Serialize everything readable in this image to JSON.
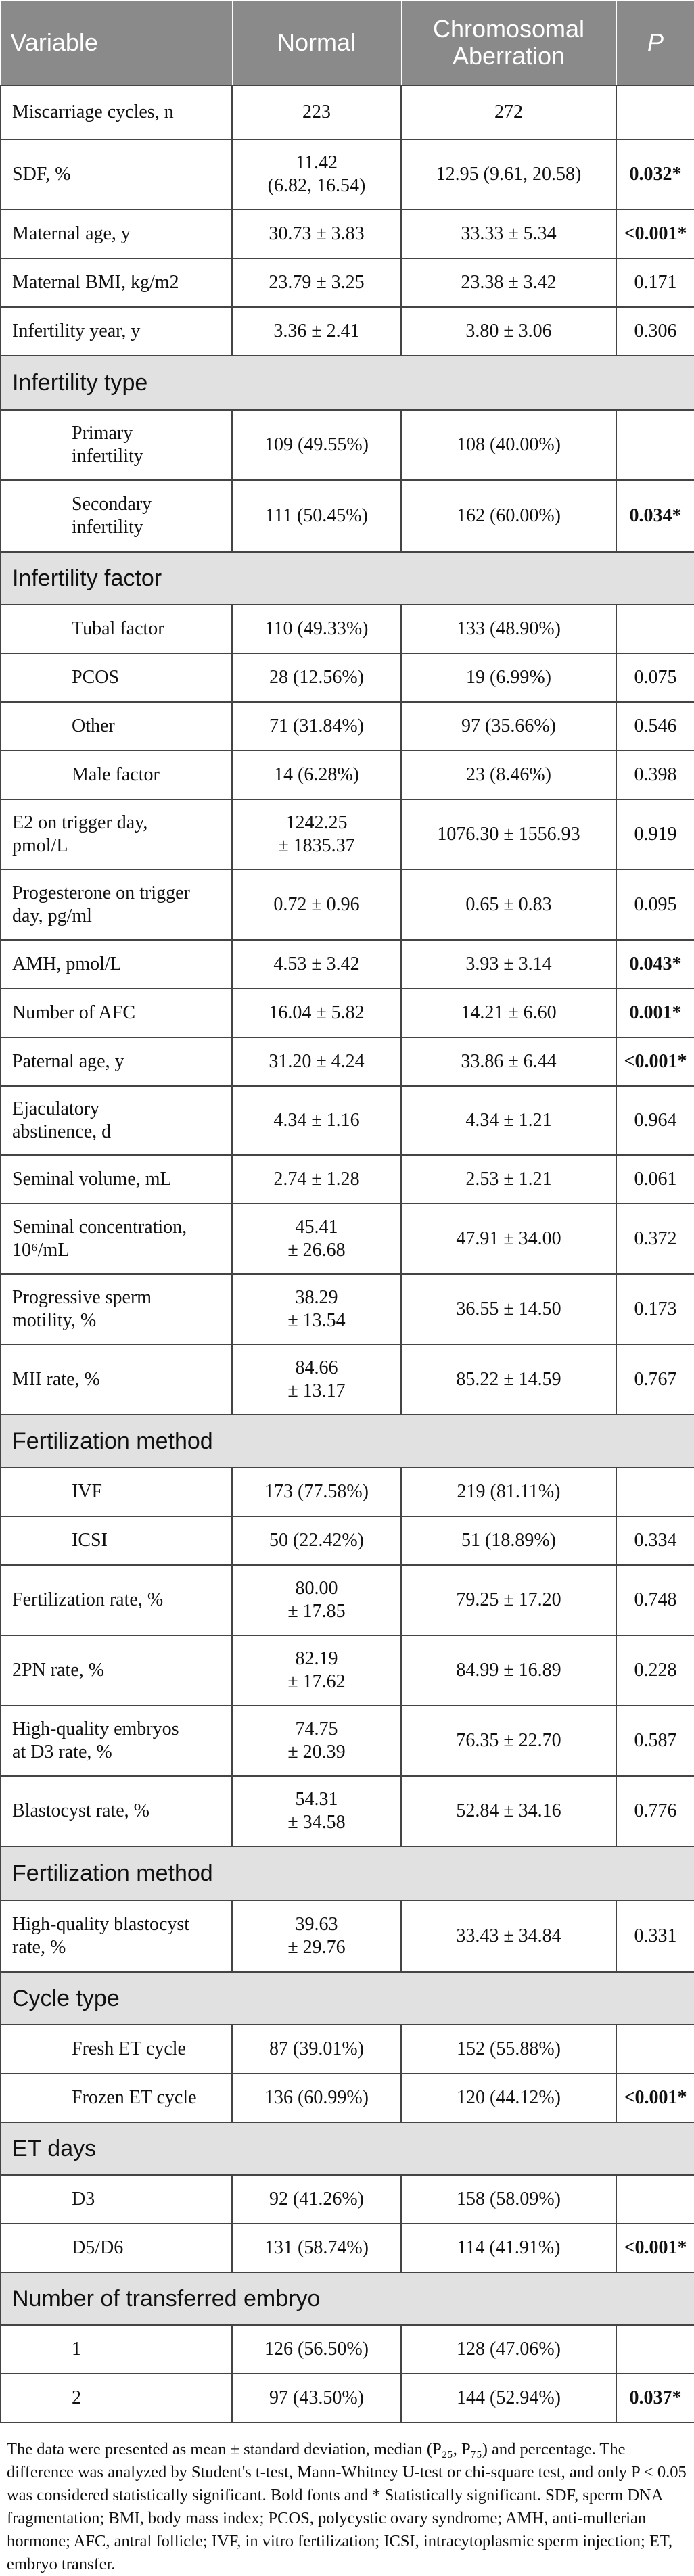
{
  "header": {
    "variable": "Variable",
    "normal": "Normal",
    "aberration_line1": "Chromosomal",
    "aberration_line2": "Aberration",
    "p": "P"
  },
  "rows": [
    {
      "kind": "data",
      "h": 80,
      "label": [
        "Miscarriage cycles, n"
      ],
      "normal": [
        "223"
      ],
      "aberration": [
        "272"
      ],
      "p": "",
      "bold": false
    },
    {
      "kind": "data",
      "h": 104,
      "label": [
        "SDF, %"
      ],
      "normal": [
        "11.42",
        "(6.82, 16.54)"
      ],
      "aberration": [
        "12.95 (9.61, 20.58)"
      ],
      "p": "0.032*",
      "bold": true
    },
    {
      "kind": "data",
      "h": 72,
      "label": [
        "Maternal age, y"
      ],
      "normal": [
        "30.73 ± 3.83"
      ],
      "aberration": [
        "33.33 ± 5.34"
      ],
      "p": "<0.001*",
      "bold": true
    },
    {
      "kind": "data",
      "h": 72,
      "label": [
        "Maternal BMI, kg/m2"
      ],
      "normal": [
        "23.79 ± 3.25"
      ],
      "aberration": [
        "23.38 ± 3.42"
      ],
      "p": "0.171",
      "bold": false
    },
    {
      "kind": "data",
      "h": 72,
      "label": [
        "Infertility year, y"
      ],
      "normal": [
        "3.36 ± 2.41"
      ],
      "aberration": [
        "3.80 ± 3.06"
      ],
      "p": "0.306",
      "bold": false
    },
    {
      "kind": "section",
      "h": 80,
      "label": "Infertility type"
    },
    {
      "kind": "sub",
      "h": 104,
      "label": [
        "Primary",
        "infertility"
      ],
      "normal": [
        "109 (49.55%)"
      ],
      "aberration": [
        "108 (40.00%)"
      ],
      "p": "",
      "bold": false
    },
    {
      "kind": "sub",
      "h": 106,
      "label": [
        "Secondary",
        "infertility"
      ],
      "normal": [
        "111 (50.45%)"
      ],
      "aberration": [
        "162 (60.00%)"
      ],
      "p": "0.034*",
      "bold": true
    },
    {
      "kind": "section",
      "h": 78,
      "label": "Infertility factor"
    },
    {
      "kind": "sub",
      "h": 72,
      "label": [
        "Tubal factor"
      ],
      "normal": [
        "110 (49.33%)"
      ],
      "aberration": [
        "133 (48.90%)"
      ],
      "p": "",
      "bold": false
    },
    {
      "kind": "sub",
      "h": 72,
      "label": [
        "PCOS"
      ],
      "normal": [
        "28 (12.56%)"
      ],
      "aberration": [
        "19 (6.99%)"
      ],
      "p": "0.075",
      "bold": false
    },
    {
      "kind": "sub",
      "h": 72,
      "label": [
        "Other"
      ],
      "normal": [
        "71 (31.84%)"
      ],
      "aberration": [
        "97 (35.66%)"
      ],
      "p": "0.546",
      "bold": false
    },
    {
      "kind": "sub",
      "h": 72,
      "label": [
        "Male factor"
      ],
      "normal": [
        "14 (6.28%)"
      ],
      "aberration": [
        "23 (8.46%)"
      ],
      "p": "0.398",
      "bold": false
    },
    {
      "kind": "data",
      "h": 104,
      "label": [
        "E2 on trigger day,",
        "pmol/L"
      ],
      "normal": [
        "1242.25",
        "± 1835.37"
      ],
      "aberration": [
        "1076.30 ± 1556.93"
      ],
      "p": "0.919",
      "bold": false
    },
    {
      "kind": "data",
      "h": 104,
      "label": [
        "Progesterone on trigger",
        "day, pg/ml"
      ],
      "normal": [
        "0.72 ± 0.96"
      ],
      "aberration": [
        "0.65 ± 0.83"
      ],
      "p": "0.095",
      "bold": false
    },
    {
      "kind": "data",
      "h": 72,
      "label": [
        "AMH, pmol/L"
      ],
      "normal": [
        "4.53 ± 3.42"
      ],
      "aberration": [
        "3.93 ± 3.14"
      ],
      "p": "0.043*",
      "bold": true
    },
    {
      "kind": "data",
      "h": 72,
      "label": [
        "Number of AFC"
      ],
      "normal": [
        "16.04 ± 5.82"
      ],
      "aberration": [
        "14.21 ± 6.60"
      ],
      "p": "0.001*",
      "bold": true
    },
    {
      "kind": "data",
      "h": 72,
      "label": [
        "Paternal age, y"
      ],
      "normal": [
        "31.20 ± 4.24"
      ],
      "aberration": [
        "33.86 ± 6.44"
      ],
      "p": "<0.001*",
      "bold": true
    },
    {
      "kind": "data",
      "h": 102,
      "label": [
        "Ejaculatory",
        "abstinence, d"
      ],
      "normal": [
        "4.34 ± 1.16"
      ],
      "aberration": [
        "4.34 ± 1.21"
      ],
      "p": "0.964",
      "bold": false
    },
    {
      "kind": "data",
      "h": 72,
      "label": [
        "Seminal volume, mL"
      ],
      "normal": [
        "2.74 ± 1.28"
      ],
      "aberration": [
        "2.53 ± 1.21"
      ],
      "p": "0.061",
      "bold": false
    },
    {
      "kind": "data",
      "h": 104,
      "label": [
        "Seminal concentration,",
        "10⁶/mL"
      ],
      "normal": [
        "45.41",
        "± 26.68"
      ],
      "aberration": [
        "47.91 ± 34.00"
      ],
      "p": "0.372",
      "bold": false
    },
    {
      "kind": "data",
      "h": 104,
      "label": [
        "Progressive sperm",
        "motility, %"
      ],
      "normal": [
        "38.29",
        "± 13.54"
      ],
      "aberration": [
        "36.55 ± 14.50"
      ],
      "p": "0.173",
      "bold": false
    },
    {
      "kind": "data",
      "h": 104,
      "label": [
        "MII rate, %"
      ],
      "normal": [
        "84.66",
        "± 13.17"
      ],
      "aberration": [
        "85.22 ± 14.59"
      ],
      "p": "0.767",
      "bold": false
    },
    {
      "kind": "section",
      "h": 78,
      "label": "Fertilization method"
    },
    {
      "kind": "sub",
      "h": 72,
      "label": [
        "IVF"
      ],
      "normal": [
        "173 (77.58%)"
      ],
      "aberration": [
        "219 (81.11%)"
      ],
      "p": "",
      "bold": false
    },
    {
      "kind": "sub",
      "h": 72,
      "label": [
        "ICSI"
      ],
      "normal": [
        "50 (22.42%)"
      ],
      "aberration": [
        "51 (18.89%)"
      ],
      "p": "0.334",
      "bold": false
    },
    {
      "kind": "data",
      "h": 104,
      "label": [
        "Fertilization rate, %"
      ],
      "normal": [
        "80.00",
        "± 17.85"
      ],
      "aberration": [
        "79.25 ± 17.20"
      ],
      "p": "0.748",
      "bold": false
    },
    {
      "kind": "data",
      "h": 104,
      "label": [
        "2PN rate, %"
      ],
      "normal": [
        "82.19",
        "± 17.62"
      ],
      "aberration": [
        "84.99 ± 16.89"
      ],
      "p": "0.228",
      "bold": false
    },
    {
      "kind": "data",
      "h": 104,
      "label": [
        "High-quality embryos",
        "at D3 rate, %"
      ],
      "normal": [
        "74.75",
        "± 20.39"
      ],
      "aberration": [
        "76.35 ± 22.70"
      ],
      "p": "0.587",
      "bold": false
    },
    {
      "kind": "data",
      "h": 104,
      "label": [
        "Blastocyst rate, %"
      ],
      "normal": [
        "54.31",
        "± 34.58"
      ],
      "aberration": [
        "52.84 ± 34.16"
      ],
      "p": "0.776",
      "bold": false
    },
    {
      "kind": "section",
      "h": 80,
      "label": "Fertilization method"
    },
    {
      "kind": "data",
      "h": 106,
      "label": [
        "High-quality blastocyst",
        "rate, %"
      ],
      "normal": [
        "39.63",
        "± 29.76"
      ],
      "aberration": [
        "33.43 ± 34.84"
      ],
      "p": "0.331",
      "bold": false
    },
    {
      "kind": "section",
      "h": 78,
      "label": "Cycle type"
    },
    {
      "kind": "sub",
      "h": 72,
      "label": [
        "Fresh ET cycle"
      ],
      "normal": [
        "87 (39.01%)"
      ],
      "aberration": [
        "152 (55.88%)"
      ],
      "p": "",
      "bold": false
    },
    {
      "kind": "sub",
      "h": 72,
      "label": [
        "Frozen ET cycle"
      ],
      "normal": [
        "136 (60.99%)"
      ],
      "aberration": [
        "120 (44.12%)"
      ],
      "p": "<0.001*",
      "bold": true
    },
    {
      "kind": "section",
      "h": 78,
      "label": "ET days"
    },
    {
      "kind": "sub",
      "h": 72,
      "label": [
        "D3"
      ],
      "normal": [
        "92 (41.26%)"
      ],
      "aberration": [
        "158 (58.09%)"
      ],
      "p": "",
      "bold": false
    },
    {
      "kind": "sub",
      "h": 72,
      "label": [
        "D5/D6"
      ],
      "normal": [
        "131 (58.74%)"
      ],
      "aberration": [
        "114 (41.91%)"
      ],
      "p": "<0.001*",
      "bold": true
    },
    {
      "kind": "section",
      "h": 78,
      "label": "Number of transferred embryo"
    },
    {
      "kind": "sub",
      "h": 72,
      "label": [
        "1"
      ],
      "normal": [
        "126 (56.50%)"
      ],
      "aberration": [
        "128 (47.06%)"
      ],
      "p": "",
      "bold": false
    },
    {
      "kind": "sub",
      "h": 72,
      "label": [
        "2"
      ],
      "normal": [
        "97 (43.50%)"
      ],
      "aberration": [
        "144 (52.94%)"
      ],
      "p": "0.037*",
      "bold": true
    }
  ],
  "footnote": "The data were presented as mean ± standard deviation, median (P₂₅, P₇₅) and percentage. The difference was analyzed by Student's t-test, Mann-Whitney U-test or chi-square test, and only P < 0.05 was considered statistically significant. Bold fonts and * Statistically significant. SDF, sperm DNA fragmentation; BMI, body mass index; PCOS, polycystic ovary syndrome; AMH, anti-mullerian hormone; AFC, antral follicle; IVF, in vitro fertilization; ICSI, intracytoplasmic sperm injection; ET, embryo transfer."
}
